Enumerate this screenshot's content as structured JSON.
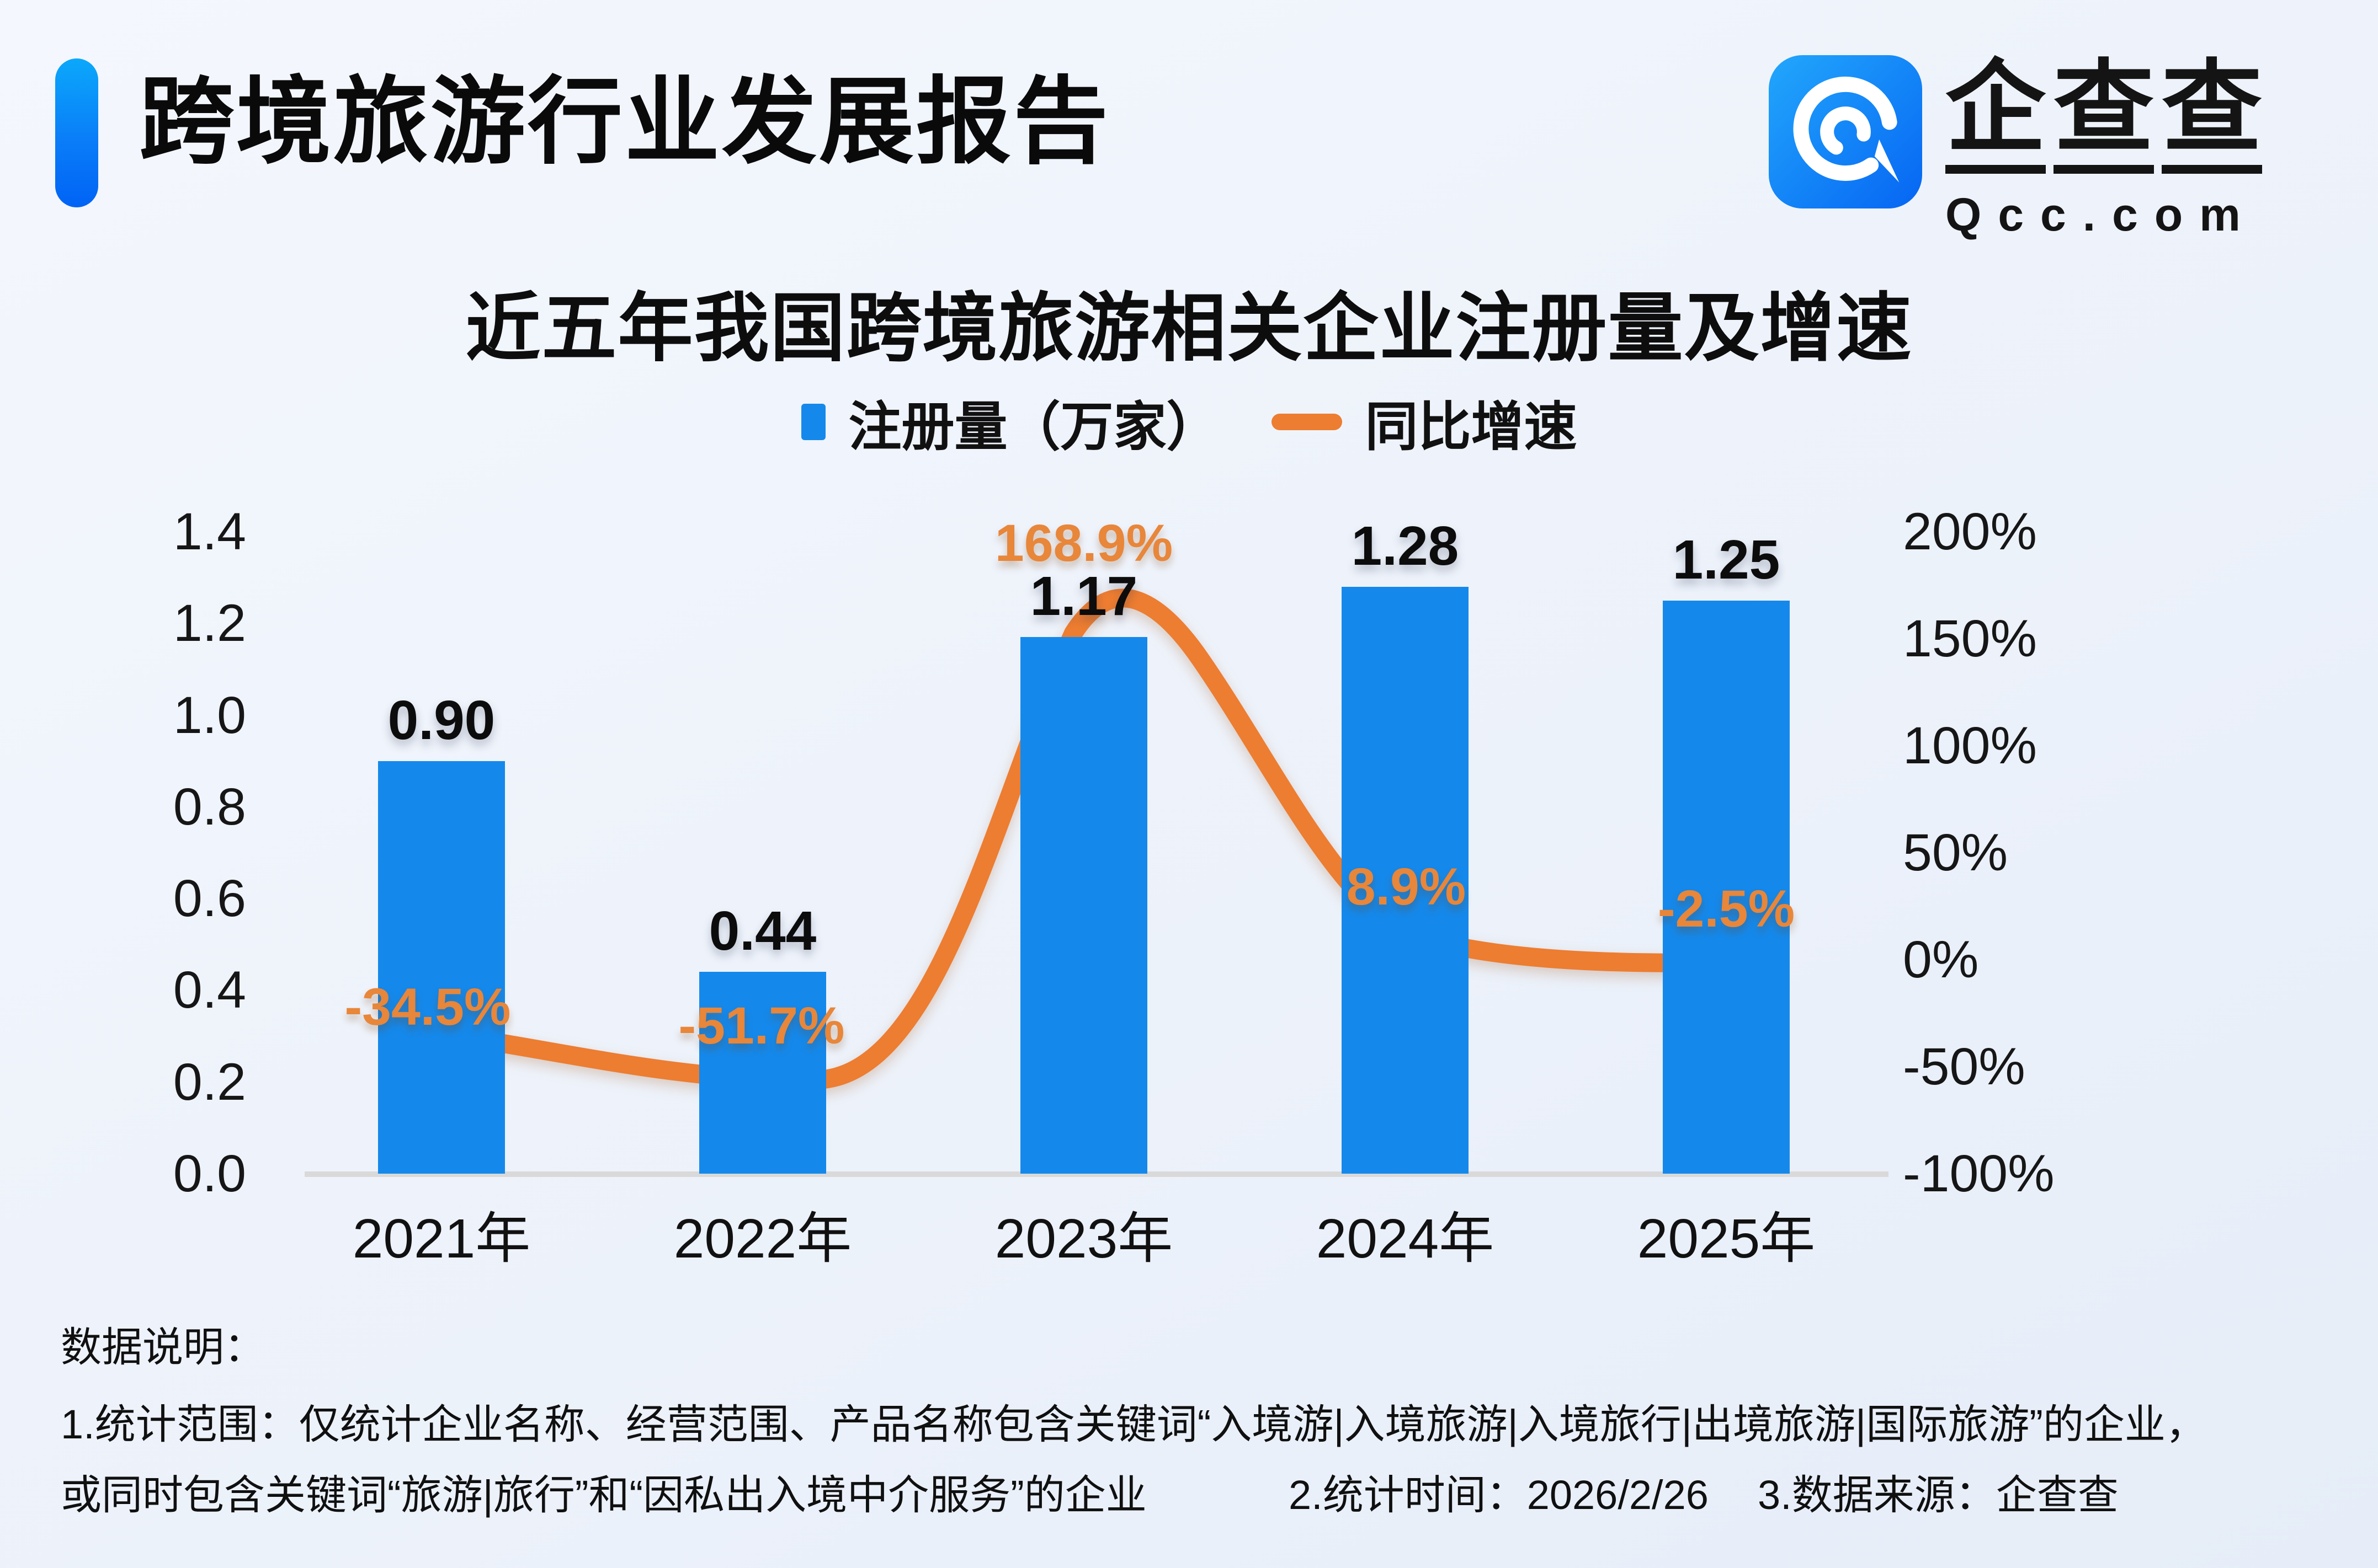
{
  "header": {
    "title": "跨境旅游行业发展报告"
  },
  "logo": {
    "chars": [
      "企",
      "查",
      "查"
    ],
    "domain": "Qcc.com",
    "icon": "qcc-spiral-icon",
    "icon_gradient_top": "#22A7FC",
    "icon_gradient_bottom": "#0665F3"
  },
  "chart_data": {
    "type": "bar+line",
    "title": "近五年我国跨境旅游相关企业注册量及增速",
    "categories": [
      "2021年",
      "2022年",
      "2023年",
      "2024年",
      "2025年"
    ],
    "series": [
      {
        "name": "注册量（万家）",
        "type": "bar",
        "axis": "left",
        "color": "#1589EB",
        "values": [
          0.9,
          0.44,
          1.17,
          1.28,
          1.25
        ],
        "labels": [
          "0.90",
          "0.44",
          "1.17",
          "1.28",
          "1.25"
        ]
      },
      {
        "name": "同比增速",
        "type": "line",
        "axis": "right",
        "color": "#ED7D31",
        "label_color": "#E8863A",
        "values": [
          -34.5,
          -51.7,
          168.9,
          8.9,
          -2.5
        ],
        "labels": [
          "-34.5%",
          "-51.7%",
          "168.9%",
          "8.9%",
          "-2.5%"
        ]
      }
    ],
    "left_axis": {
      "ticks": [
        "0.0",
        "0.2",
        "0.4",
        "0.6",
        "0.8",
        "1.0",
        "1.2",
        "1.4"
      ],
      "min": 0,
      "max": 1.4
    },
    "right_axis": {
      "ticks": [
        "200%",
        "150%",
        "100%",
        "50%",
        "0%",
        "-50%",
        "-100%"
      ],
      "min": -100,
      "max": 200
    },
    "legend_position": "top-center",
    "grid": false,
    "baseline_color": "#D9D9D9"
  },
  "notes": {
    "heading": "数据说明：",
    "scope_line1": "1.统计范围：仅统计企业名称、经营范围、产品名称包含关键词“入境游|入境旅游|入境旅行|出境旅游|国际旅游”的企业，",
    "scope_line2": "或同时包含关键词“旅游|旅行”和“因私出入境中介服务”的企业",
    "stat_time": "2.统计时间：2026/2/26",
    "data_source": "3.数据来源：企查查"
  }
}
